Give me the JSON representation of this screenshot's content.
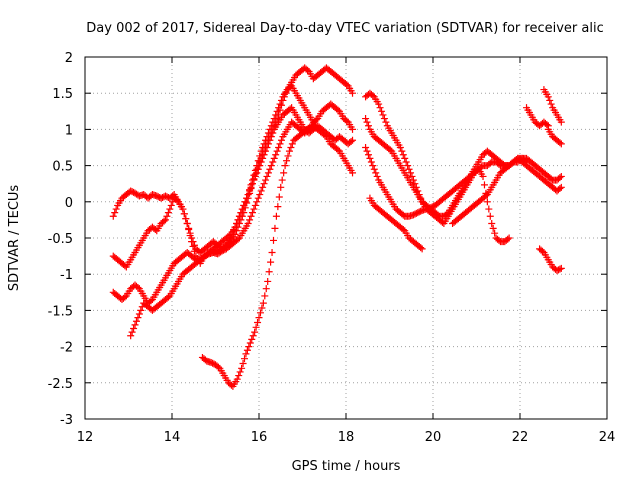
{
  "chart_data": {
    "type": "scatter",
    "title": "Day 002 of 2017, Sidereal Day-to-day VTEC variation (SDTVAR) for receiver alic",
    "xlabel": "GPS time / hours",
    "ylabel": "SDTVAR / TECUs",
    "xlim": [
      12,
      24
    ],
    "ylim": [
      -3,
      2
    ],
    "xticks": [
      12,
      14,
      16,
      18,
      20,
      22,
      24
    ],
    "yticks": [
      -3,
      -2.5,
      -2,
      -1.5,
      -1,
      -0.5,
      0,
      0.5,
      1,
      1.5,
      2
    ],
    "xtick_labels": [
      "12",
      "14",
      "16",
      "18",
      "20",
      "22",
      "24"
    ],
    "ytick_labels": [
      "-3",
      "-2.5",
      "-2",
      "-1.5",
      "-1",
      "-0.5",
      "0",
      "0.5",
      "1",
      "1.5",
      "2"
    ],
    "grid": true,
    "marker": "plus",
    "color": "#ff0000",
    "series": [
      {
        "x": [
          12.65,
          12.75,
          12.85,
          12.95,
          13.05,
          13.15,
          13.25,
          13.35,
          13.45,
          13.55,
          13.65,
          13.75,
          13.85,
          13.95,
          14.05,
          14.15,
          14.25,
          14.35,
          14.45,
          14.55,
          14.65,
          14.75,
          14.85,
          14.95,
          15.05,
          15.15,
          15.25,
          15.35,
          15.45,
          15.55,
          15.65,
          15.75,
          15.85,
          15.95,
          16.05,
          16.15,
          16.25,
          16.35,
          16.45,
          16.55,
          16.65,
          16.75,
          16.85,
          16.95,
          17.05,
          17.15,
          17.25,
          17.35,
          17.45,
          17.55,
          17.65,
          17.75,
          17.85,
          17.95,
          18.05,
          18.15
        ],
        "y": [
          -0.2,
          -0.05,
          0.05,
          0.1,
          0.15,
          0.12,
          0.08,
          0.1,
          0.05,
          0.1,
          0.08,
          0.05,
          0.08,
          0.05,
          0.1,
          0.0,
          -0.1,
          -0.3,
          -0.5,
          -0.65,
          -0.7,
          -0.65,
          -0.6,
          -0.55,
          -0.6,
          -0.65,
          -0.6,
          -0.55,
          -0.45,
          -0.3,
          -0.15,
          0.05,
          0.25,
          0.45,
          0.6,
          0.75,
          0.9,
          1.05,
          1.2,
          1.4,
          1.55,
          1.65,
          1.75,
          1.8,
          1.85,
          1.8,
          1.7,
          1.75,
          1.8,
          1.85,
          1.8,
          1.75,
          1.7,
          1.65,
          1.6,
          1.5
        ]
      },
      {
        "x": [
          12.65,
          12.75,
          12.85,
          12.95,
          13.05,
          13.15,
          13.25,
          13.35,
          13.45,
          13.55,
          13.65,
          13.75,
          13.85,
          13.95,
          14.05,
          14.15,
          14.25,
          14.35,
          14.45,
          14.55,
          14.65,
          14.75,
          14.85,
          14.95,
          15.05,
          15.15,
          15.25,
          15.35,
          15.45,
          15.55,
          15.65,
          15.75,
          15.85,
          15.95,
          16.05,
          16.15,
          16.25,
          16.35,
          16.45,
          16.55,
          16.65,
          16.75,
          16.85,
          16.95,
          17.05,
          17.15,
          17.25,
          17.35,
          17.45,
          17.55,
          17.65,
          17.75,
          17.85,
          17.95,
          18.05,
          18.15
        ],
        "y": [
          -0.75,
          -0.8,
          -0.85,
          -0.9,
          -0.8,
          -0.7,
          -0.6,
          -0.5,
          -0.4,
          -0.35,
          -0.4,
          -0.3,
          -0.25,
          -0.1,
          0.05,
          0.0,
          -0.1,
          -0.3,
          -0.55,
          -0.75,
          -0.85,
          -0.75,
          -0.7,
          -0.65,
          -0.6,
          -0.55,
          -0.5,
          -0.45,
          -0.35,
          -0.2,
          -0.05,
          0.1,
          0.3,
          0.5,
          0.7,
          0.85,
          1.0,
          1.15,
          1.3,
          1.45,
          1.55,
          1.6,
          1.5,
          1.4,
          1.3,
          1.2,
          1.1,
          1.15,
          1.25,
          1.3,
          1.35,
          1.3,
          1.25,
          1.15,
          1.1,
          1.0
        ]
      },
      {
        "x": [
          12.65,
          12.75,
          12.85,
          12.95,
          13.05,
          13.15,
          13.25,
          13.35,
          13.45,
          13.55,
          13.65,
          13.75,
          13.85,
          13.95,
          14.05,
          14.15,
          14.25,
          14.35,
          14.45,
          14.55,
          14.65,
          14.75,
          14.85,
          14.95,
          15.05,
          15.15,
          15.25,
          15.35,
          15.45,
          15.55,
          15.65,
          15.75,
          15.85,
          15.95,
          16.05,
          16.15,
          16.25,
          16.35,
          16.45,
          16.55,
          16.65,
          16.75,
          16.85,
          16.95,
          17.05,
          17.15,
          17.25,
          17.35,
          17.45,
          17.55,
          17.65,
          17.75,
          17.85,
          17.95,
          18.05,
          18.15
        ],
        "y": [
          -1.25,
          -1.3,
          -1.35,
          -1.3,
          -1.2,
          -1.15,
          -1.2,
          -1.3,
          -1.4,
          -1.35,
          -1.25,
          -1.15,
          -1.05,
          -0.95,
          -0.85,
          -0.8,
          -0.75,
          -0.7,
          -0.75,
          -0.8,
          -0.8,
          -0.75,
          -0.72,
          -0.7,
          -0.68,
          -0.65,
          -0.6,
          -0.5,
          -0.35,
          -0.2,
          -0.05,
          0.1,
          0.25,
          0.4,
          0.55,
          0.7,
          0.85,
          1.0,
          1.1,
          1.2,
          1.25,
          1.3,
          1.2,
          1.1,
          1.0,
          0.95,
          1.0,
          1.05,
          1.0,
          0.95,
          0.9,
          0.85,
          0.9,
          0.85,
          0.8,
          0.85
        ]
      },
      {
        "x": [
          13.05,
          13.15,
          13.25,
          13.35,
          13.45,
          13.55,
          13.65,
          13.75,
          13.85,
          13.95,
          14.05,
          14.15,
          14.25,
          14.35,
          14.45,
          14.55,
          14.65,
          14.75,
          14.85,
          14.95,
          15.05,
          15.15,
          15.25,
          15.35,
          15.45,
          15.55,
          15.65,
          15.75,
          15.85,
          15.95,
          16.05,
          16.15,
          16.25,
          16.35,
          16.45,
          16.55,
          16.65,
          16.75,
          16.85,
          16.95,
          17.05,
          17.15,
          17.25,
          17.35,
          17.45,
          17.55,
          17.65,
          17.75,
          17.85,
          17.95,
          18.05,
          18.15
        ],
        "y": [
          -1.85,
          -1.7,
          -1.55,
          -1.4,
          -1.45,
          -1.5,
          -1.45,
          -1.4,
          -1.35,
          -1.3,
          -1.2,
          -1.1,
          -1.0,
          -0.95,
          -0.9,
          -0.85,
          -0.8,
          -0.75,
          -0.7,
          -0.7,
          -0.72,
          -0.68,
          -0.65,
          -0.6,
          -0.55,
          -0.5,
          -0.4,
          -0.3,
          -0.15,
          0.0,
          0.15,
          0.3,
          0.45,
          0.6,
          0.75,
          0.9,
          1.0,
          1.1,
          1.05,
          1.0,
          0.95,
          1.0,
          1.05,
          1.0,
          0.95,
          0.9,
          0.8,
          0.75,
          0.7,
          0.6,
          0.5,
          0.4
        ]
      },
      {
        "x": [
          14.7,
          14.8,
          14.9,
          15.0,
          15.1,
          15.2,
          15.3,
          15.4,
          15.5,
          15.6,
          15.7,
          15.8,
          15.9,
          16.0,
          16.1,
          16.2,
          16.3,
          16.4,
          16.5,
          16.6,
          16.7,
          16.8,
          16.9,
          17.0,
          17.1,
          17.2,
          17.3
        ],
        "y": [
          -2.15,
          -2.2,
          -2.22,
          -2.25,
          -2.3,
          -2.4,
          -2.5,
          -2.55,
          -2.45,
          -2.3,
          -2.1,
          -1.95,
          -1.8,
          -1.6,
          -1.4,
          -1.1,
          -0.7,
          -0.2,
          0.2,
          0.5,
          0.7,
          0.85,
          0.9,
          0.95,
          1.0,
          1.05,
          1.05
        ]
      },
      {
        "x": [
          18.45,
          18.55,
          18.65,
          18.75,
          18.85,
          18.95,
          19.05,
          19.15,
          19.25,
          19.35,
          19.45,
          19.55,
          19.65,
          19.75,
          19.85,
          19.95,
          20.05,
          20.15,
          20.25,
          20.35,
          20.45,
          20.55,
          20.65,
          20.75,
          20.85,
          20.95,
          21.05,
          21.15,
          21.25,
          21.35,
          21.45,
          21.55,
          21.65,
          21.75
        ],
        "y": [
          1.45,
          1.5,
          1.45,
          1.35,
          1.2,
          1.05,
          0.95,
          0.85,
          0.75,
          0.6,
          0.45,
          0.3,
          0.15,
          0.0,
          -0.1,
          -0.15,
          -0.2,
          -0.25,
          -0.3,
          -0.2,
          -0.1,
          0.0,
          0.1,
          0.2,
          0.3,
          0.4,
          0.45,
          0.35,
          0.0,
          -0.3,
          -0.5,
          -0.55,
          -0.55,
          -0.5
        ]
      },
      {
        "x": [
          18.45,
          18.55,
          18.65,
          18.75,
          18.85,
          18.95,
          19.05,
          19.15,
          19.25,
          19.35,
          19.45,
          19.55,
          19.65,
          19.75,
          19.85,
          19.95,
          20.05,
          20.15,
          20.25,
          20.35,
          20.45,
          20.55,
          20.65,
          20.75,
          20.85,
          20.95,
          21.05,
          21.15,
          21.25,
          21.35,
          21.45,
          21.55,
          21.65,
          21.75,
          21.85,
          21.95,
          22.05,
          22.15
        ],
        "y": [
          1.15,
          1.0,
          0.9,
          0.85,
          0.8,
          0.75,
          0.7,
          0.6,
          0.5,
          0.4,
          0.3,
          0.2,
          0.1,
          0.0,
          -0.05,
          -0.1,
          -0.15,
          -0.2,
          -0.2,
          -0.15,
          -0.05,
          0.05,
          0.15,
          0.25,
          0.35,
          0.45,
          0.55,
          0.65,
          0.7,
          0.65,
          0.6,
          0.55,
          0.5,
          0.5,
          0.55,
          0.6,
          0.6,
          0.55
        ]
      },
      {
        "x": [
          18.45,
          18.55,
          18.65,
          18.75,
          18.85,
          18.95,
          19.05,
          19.15,
          19.25,
          19.35,
          19.45,
          19.55,
          19.65,
          19.75,
          19.85,
          19.95,
          20.05,
          20.15,
          20.25,
          20.35,
          20.45,
          20.55,
          20.65,
          20.75,
          20.85,
          20.95,
          21.05,
          21.15,
          21.25,
          21.35,
          21.45,
          21.55,
          21.65,
          21.75,
          21.85,
          21.95,
          22.05,
          22.15,
          22.25,
          22.35,
          22.45,
          22.55,
          22.65,
          22.75,
          22.85,
          22.95
        ],
        "y": [
          0.75,
          0.6,
          0.45,
          0.3,
          0.2,
          0.1,
          0.0,
          -0.1,
          -0.15,
          -0.2,
          -0.2,
          -0.18,
          -0.15,
          -0.12,
          -0.1,
          -0.08,
          -0.05,
          0.0,
          0.05,
          0.1,
          0.15,
          0.2,
          0.25,
          0.3,
          0.35,
          0.4,
          0.45,
          0.5,
          0.5,
          0.55,
          0.55,
          0.5,
          0.5,
          0.5,
          0.55,
          0.6,
          0.55,
          0.5,
          0.45,
          0.4,
          0.35,
          0.3,
          0.25,
          0.2,
          0.15,
          0.2
        ]
      },
      {
        "x": [
          18.55,
          18.65,
          18.75,
          18.85,
          18.95,
          19.05,
          19.15,
          19.25,
          19.35,
          19.45,
          19.55,
          19.65,
          19.75
        ],
        "y": [
          0.05,
          -0.05,
          -0.1,
          -0.15,
          -0.2,
          -0.25,
          -0.3,
          -0.35,
          -0.4,
          -0.5,
          -0.55,
          -0.6,
          -0.65
        ]
      },
      {
        "x": [
          20.45,
          20.55,
          20.65,
          20.75,
          20.85,
          20.95,
          21.05,
          21.15,
          21.25,
          21.35,
          21.45,
          21.55,
          21.65,
          21.75,
          21.85,
          21.95,
          22.05,
          22.15,
          22.25,
          22.35,
          22.45,
          22.55,
          22.65,
          22.75,
          22.85,
          22.95
        ],
        "y": [
          -0.3,
          -0.25,
          -0.2,
          -0.15,
          -0.1,
          -0.05,
          0.0,
          0.05,
          0.1,
          0.2,
          0.3,
          0.4,
          0.45,
          0.5,
          0.55,
          0.55,
          0.6,
          0.6,
          0.55,
          0.5,
          0.45,
          0.4,
          0.35,
          0.3,
          0.3,
          0.35
        ]
      },
      {
        "x": [
          22.15,
          22.25,
          22.35,
          22.45,
          22.55,
          22.65
        ],
        "y": [
          1.3,
          1.2,
          1.1,
          1.05,
          1.1,
          1.05
        ]
      },
      {
        "x": [
          22.55,
          22.65,
          22.75,
          22.85,
          22.95
        ],
        "y": [
          1.55,
          1.45,
          1.3,
          1.2,
          1.1
        ]
      },
      {
        "x": [
          22.65,
          22.75,
          22.85,
          22.95
        ],
        "y": [
          1.0,
          0.9,
          0.85,
          0.8
        ]
      },
      {
        "x": [
          22.45,
          22.55,
          22.65,
          22.75,
          22.85,
          22.95
        ],
        "y": [
          -0.65,
          -0.7,
          -0.8,
          -0.9,
          -0.95,
          -0.92
        ]
      }
    ]
  }
}
